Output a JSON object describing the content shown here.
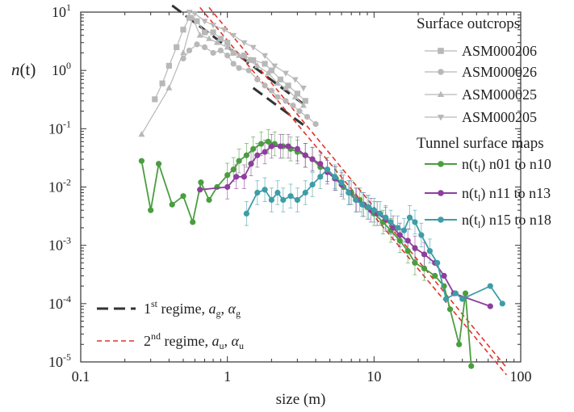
{
  "chart_data": {
    "type": "scatter",
    "x_scale": "log",
    "y_scale": "log",
    "xlim": [
      0.1,
      100
    ],
    "ylim": [
      1e-05,
      10
    ],
    "xlabel": "size (m)",
    "ylabel_main": "n",
    "ylabel_paren": "(t)",
    "x_ticks": [
      {
        "value": 0.1,
        "label": "0.1"
      },
      {
        "value": 1,
        "label": "1"
      },
      {
        "value": 10,
        "label": "10"
      },
      {
        "value": 100,
        "label": "100"
      }
    ],
    "y_ticks": [
      {
        "value": 10,
        "base": "10",
        "exp": "1"
      },
      {
        "value": 1,
        "base": "10",
        "exp": "0"
      },
      {
        "value": 0.1,
        "base": "10",
        "exp": "-1"
      },
      {
        "value": 0.01,
        "base": "10",
        "exp": "-2"
      },
      {
        "value": 0.001,
        "base": "10",
        "exp": "-3"
      },
      {
        "value": 0.0001,
        "base": "10",
        "exp": "-4"
      },
      {
        "value": 1e-05,
        "base": "10",
        "exp": "-5"
      }
    ],
    "legend_position": "right",
    "legend_group_titles": [
      "Surface outcrops",
      "Tunnel surface maps"
    ],
    "series": [
      {
        "name": "ASM000206",
        "group": 0,
        "marker": "square",
        "color": "#b8b8b8",
        "points": [
          [
            0.32,
            0.32
          ],
          [
            0.36,
            0.6
          ],
          [
            0.4,
            1.2
          ],
          [
            0.45,
            2.5
          ],
          [
            0.5,
            5.0
          ],
          [
            0.55,
            8.0
          ],
          [
            0.62,
            7.0
          ],
          [
            0.7,
            4.5
          ],
          [
            0.8,
            4.5
          ],
          [
            0.9,
            3.5
          ],
          [
            1.0,
            3.0
          ],
          [
            1.1,
            2.0
          ],
          [
            1.3,
            1.8
          ],
          [
            1.5,
            1.5
          ],
          [
            1.8,
            1.3
          ],
          [
            2.0,
            1.0
          ],
          [
            2.3,
            0.7
          ],
          [
            2.6,
            0.55
          ],
          [
            3.0,
            0.4
          ],
          [
            3.4,
            0.3
          ]
        ]
      },
      {
        "name": "ASM000026",
        "group": 0,
        "marker": "circle",
        "color": "#b8b8b8",
        "points": [
          [
            0.5,
            1.6
          ],
          [
            0.55,
            2.2
          ],
          [
            0.62,
            2.8
          ],
          [
            0.7,
            2.5
          ],
          [
            0.8,
            2.0
          ],
          [
            0.9,
            2.2
          ],
          [
            1.0,
            1.8
          ],
          [
            1.1,
            1.3
          ],
          [
            1.2,
            1.1
          ],
          [
            1.4,
            1.0
          ],
          [
            1.6,
            0.7
          ],
          [
            1.8,
            0.55
          ],
          [
            2.0,
            0.45
          ],
          [
            2.2,
            0.35
          ],
          [
            2.5,
            0.3
          ],
          [
            2.8,
            0.25
          ],
          [
            3.1,
            0.2
          ],
          [
            3.5,
            0.16
          ],
          [
            4.0,
            0.12
          ]
        ]
      },
      {
        "name": "ASM000025",
        "group": 0,
        "marker": "triangle-up",
        "color": "#b8b8b8",
        "points": [
          [
            0.26,
            0.08
          ],
          [
            0.4,
            0.5
          ],
          [
            0.5,
            2.0
          ],
          [
            0.58,
            8.0
          ],
          [
            0.65,
            4.0
          ],
          [
            0.75,
            3.5
          ],
          [
            0.85,
            3.0
          ],
          [
            1.0,
            2.5
          ],
          [
            1.2,
            1.8
          ],
          [
            1.4,
            1.5
          ],
          [
            1.6,
            1.2
          ],
          [
            1.9,
            0.9
          ],
          [
            2.2,
            0.6
          ],
          [
            2.5,
            0.5
          ],
          [
            2.9,
            0.35
          ],
          [
            3.3,
            0.25
          ]
        ]
      },
      {
        "name": "ASM000205",
        "group": 0,
        "marker": "triangle-down",
        "color": "#b8b8b8",
        "points": [
          [
            0.55,
            10
          ],
          [
            0.6,
            9.5
          ],
          [
            0.7,
            7.0
          ],
          [
            0.8,
            6.0
          ],
          [
            0.95,
            5.0
          ],
          [
            1.1,
            4.0
          ],
          [
            1.3,
            3.0
          ],
          [
            1.5,
            2.5
          ],
          [
            1.8,
            1.8
          ],
          [
            2.1,
            1.2
          ],
          [
            2.5,
            0.9
          ],
          [
            2.9,
            0.7
          ],
          [
            3.3,
            0.5
          ]
        ]
      },
      {
        "name_main": "n(t",
        "name_sub": "l",
        "name_rest": ") n01 to n10",
        "group": 1,
        "marker": "circle",
        "color": "#4a9e3f",
        "points": [
          [
            0.26,
            0.028
          ],
          [
            0.3,
            0.004
          ],
          [
            0.34,
            0.025
          ],
          [
            0.42,
            0.005
          ],
          [
            0.5,
            0.007
          ],
          [
            0.58,
            0.0025
          ],
          [
            0.66,
            0.012
          ],
          [
            0.75,
            0.006
          ],
          [
            0.85,
            0.01
          ],
          [
            1.0,
            0.016
          ],
          [
            1.1,
            0.02
          ],
          [
            1.2,
            0.028
          ],
          [
            1.35,
            0.035
          ],
          [
            1.5,
            0.045
          ],
          [
            1.7,
            0.055
          ],
          [
            1.9,
            0.06
          ],
          [
            2.1,
            0.055
          ],
          [
            2.4,
            0.05
          ],
          [
            2.7,
            0.045
          ],
          [
            3.0,
            0.04
          ],
          [
            3.4,
            0.035
          ],
          [
            3.8,
            0.03
          ],
          [
            4.3,
            0.022
          ],
          [
            4.8,
            0.02
          ],
          [
            5.5,
            0.014
          ],
          [
            6.2,
            0.01
          ],
          [
            7.0,
            0.008
          ],
          [
            8.0,
            0.006
          ],
          [
            9.0,
            0.0045
          ],
          [
            10.0,
            0.0035
          ],
          [
            11.5,
            0.0025
          ],
          [
            13.0,
            0.0018
          ],
          [
            15.0,
            0.0012
          ],
          [
            17.0,
            0.0008
          ],
          [
            19.0,
            0.0005
          ],
          [
            22.0,
            0.0004
          ],
          [
            26.0,
            0.0003
          ],
          [
            30.0,
            0.0002
          ],
          [
            33.0,
            8e-05
          ],
          [
            38.0,
            2e-05
          ],
          [
            42.0,
            0.00015
          ],
          [
            46.0,
            8.5e-06
          ]
        ]
      },
      {
        "name_main": "n(t",
        "name_sub": "l",
        "name_rest": ") n11 to n13",
        "group": 1,
        "marker": "circle",
        "color": "#8e3e9e",
        "points": [
          [
            0.65,
            0.009
          ],
          [
            1.0,
            0.01
          ],
          [
            1.15,
            0.015
          ],
          [
            1.3,
            0.015
          ],
          [
            1.45,
            0.025
          ],
          [
            1.6,
            0.035
          ],
          [
            1.8,
            0.04
          ],
          [
            2.0,
            0.05
          ],
          [
            2.3,
            0.05
          ],
          [
            2.6,
            0.05
          ],
          [
            3.0,
            0.045
          ],
          [
            3.4,
            0.035
          ],
          [
            3.8,
            0.03
          ],
          [
            4.3,
            0.025
          ],
          [
            4.8,
            0.018
          ],
          [
            5.4,
            0.014
          ],
          [
            6.0,
            0.011
          ],
          [
            6.8,
            0.008
          ],
          [
            7.6,
            0.006
          ],
          [
            8.5,
            0.005
          ],
          [
            9.5,
            0.004
          ],
          [
            10.5,
            0.0035
          ],
          [
            12.0,
            0.0028
          ],
          [
            13.5,
            0.002
          ],
          [
            15.0,
            0.0015
          ],
          [
            17.0,
            0.0012
          ],
          [
            19.0,
            0.0009
          ],
          [
            22.0,
            0.0007
          ],
          [
            26.0,
            0.0005
          ],
          [
            30.0,
            0.0003
          ],
          [
            35.0,
            0.00015
          ],
          [
            62.0,
            9e-05
          ]
        ]
      },
      {
        "name_main": "n(t",
        "name_sub": "l",
        "name_rest": ") n15 to n18",
        "group": 1,
        "marker": "circle",
        "color": "#3e9da6",
        "points": [
          [
            1.35,
            0.0035
          ],
          [
            1.6,
            0.008
          ],
          [
            1.8,
            0.009
          ],
          [
            2.0,
            0.006
          ],
          [
            2.2,
            0.008
          ],
          [
            2.4,
            0.006
          ],
          [
            2.7,
            0.007
          ],
          [
            3.0,
            0.006
          ],
          [
            3.4,
            0.008
          ],
          [
            3.8,
            0.011
          ],
          [
            4.3,
            0.015
          ],
          [
            4.8,
            0.02
          ],
          [
            5.4,
            0.015
          ],
          [
            6.0,
            0.012
          ],
          [
            6.7,
            0.008
          ],
          [
            7.5,
            0.006
          ],
          [
            8.3,
            0.005
          ],
          [
            9.2,
            0.0045
          ],
          [
            10.0,
            0.004
          ],
          [
            11.0,
            0.0035
          ],
          [
            12.0,
            0.003
          ],
          [
            13.0,
            0.0025
          ],
          [
            14.5,
            0.002
          ],
          [
            16.0,
            0.0018
          ],
          [
            17.5,
            0.003
          ],
          [
            19.0,
            0.0025
          ],
          [
            21.0,
            0.0015
          ],
          [
            24.0,
            0.0008
          ],
          [
            27.0,
            0.0005
          ],
          [
            31.0,
            0.00012
          ],
          [
            36.0,
            0.00015
          ],
          [
            40.0,
            0.00012
          ],
          [
            62.0,
            0.0002
          ],
          [
            75.0,
            0.0001
          ]
        ]
      }
    ],
    "regime_lines": [
      {
        "label_pre": "1",
        "label_sup": "st",
        "label_mid": " regime, ",
        "a": "a",
        "a_sub": "g",
        "alpha": "α",
        "alpha_sub": "g",
        "color": "#333333",
        "dash": "14,7",
        "width": 3,
        "segments": [
          [
            [
              0.42,
              13
            ],
            [
              3.4,
              0.25
            ]
          ],
          [
            [
              1.5,
              0.5
            ],
            [
              3.4,
              0.11
            ]
          ]
        ]
      },
      {
        "label_pre": "2",
        "label_sup": "nd",
        "label_mid": " regime, ",
        "a": "a",
        "a_sub": "u",
        "alpha": "α",
        "alpha_sub": "u",
        "color": "#e0342c",
        "dash": "6,4",
        "width": 1.6,
        "segments": [
          [
            [
              0.65,
              12
            ],
            [
              80,
              6e-06
            ]
          ],
          [
            [
              0.75,
              12
            ],
            [
              80,
              8e-06
            ]
          ]
        ]
      }
    ]
  }
}
